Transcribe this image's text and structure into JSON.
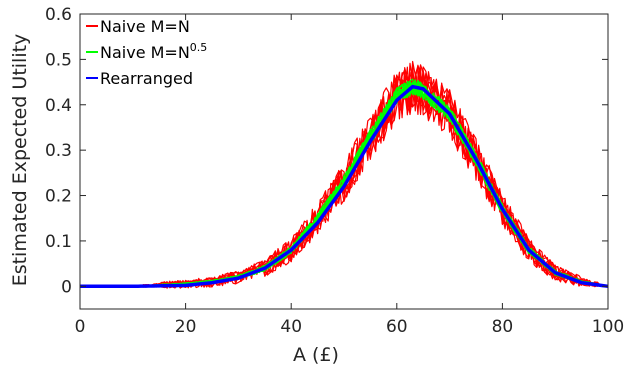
{
  "chart_data": {
    "type": "line",
    "xlabel": "A (£)",
    "ylabel": "Estimated Expected Utility",
    "xlim": [
      0,
      100
    ],
    "ylim": [
      -0.05,
      0.6
    ],
    "xticks": [
      0,
      20,
      40,
      60,
      80,
      100
    ],
    "yticks": [
      0,
      0.1,
      0.2,
      0.3,
      0.4,
      0.5,
      0.6
    ],
    "ytick_labels": [
      "0",
      "0.1",
      "0.2",
      "0.3",
      "0.4",
      "0.5",
      "0.6"
    ],
    "grid": false,
    "legend_placement": "top-left",
    "legend": [
      {
        "label": "Naive M=N",
        "sup": "",
        "color": "#ff0000"
      },
      {
        "label": "Naive M=N",
        "sup": "0.5",
        "color": "#00ff00"
      },
      {
        "label": "Rearranged",
        "sup": "",
        "color": "#0000ff"
      }
    ],
    "series": [
      {
        "name": "Naive M=N",
        "color": "#ff0000",
        "x": [
          0,
          10,
          20,
          25,
          30,
          35,
          40,
          45,
          50,
          55,
          60,
          63,
          65,
          70,
          75,
          80,
          85,
          90,
          95,
          100
        ],
        "values": [
          0,
          0,
          0.005,
          0.01,
          0.02,
          0.04,
          0.08,
          0.15,
          0.23,
          0.33,
          0.42,
          0.44,
          0.43,
          0.38,
          0.28,
          0.17,
          0.08,
          0.03,
          0.01,
          0
        ]
      },
      {
        "name": "Naive M=N^0.5",
        "color": "#00ff00",
        "x": [
          0,
          10,
          20,
          25,
          30,
          35,
          40,
          45,
          50,
          55,
          60,
          63,
          65,
          70,
          75,
          80,
          85,
          90,
          95,
          100
        ],
        "values": [
          0,
          0,
          0.005,
          0.01,
          0.02,
          0.04,
          0.08,
          0.15,
          0.23,
          0.33,
          0.42,
          0.44,
          0.43,
          0.38,
          0.28,
          0.17,
          0.08,
          0.03,
          0.01,
          0
        ]
      },
      {
        "name": "Rearranged",
        "color": "#0000ff",
        "x": [
          0,
          10,
          20,
          25,
          30,
          35,
          40,
          45,
          50,
          55,
          60,
          63,
          65,
          70,
          75,
          80,
          85,
          90,
          95,
          100
        ],
        "values": [
          0,
          0,
          0.002,
          0.008,
          0.018,
          0.04,
          0.08,
          0.14,
          0.22,
          0.32,
          0.41,
          0.44,
          0.435,
          0.38,
          0.28,
          0.17,
          0.08,
          0.03,
          0.008,
          0
        ]
      }
    ]
  }
}
